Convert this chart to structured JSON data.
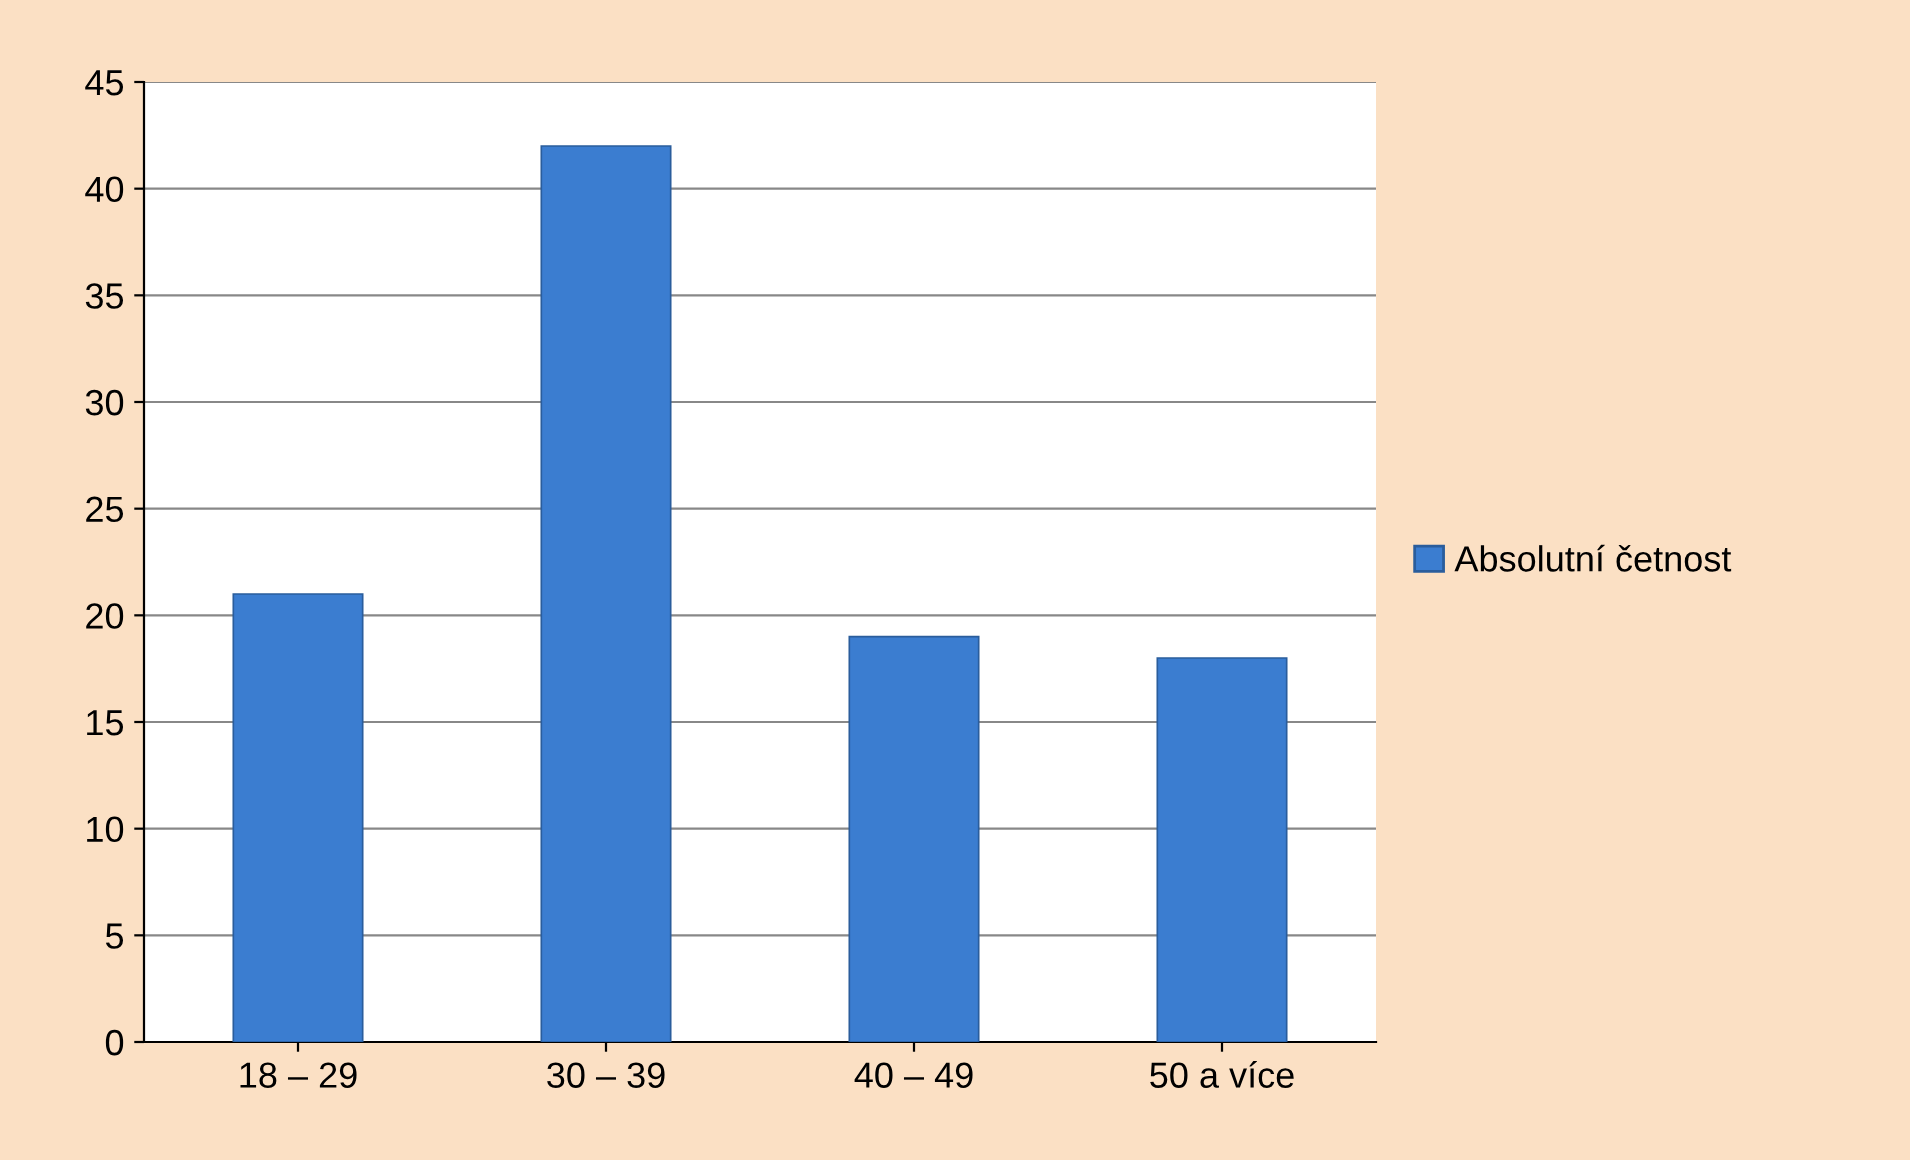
{
  "chart_data": {
    "type": "bar",
    "categories": [
      "18 – 29",
      "30 – 39",
      "40 – 49",
      "50 a více"
    ],
    "series": [
      {
        "name": "Absolutní četnost",
        "color": "#3b7dd0",
        "values": [
          21,
          42,
          19,
          18
        ]
      }
    ],
    "ylim": [
      0,
      45
    ],
    "yticks": [
      0,
      5,
      10,
      15,
      20,
      25,
      30,
      35,
      40,
      45
    ],
    "grid": "y",
    "legend": "right"
  }
}
